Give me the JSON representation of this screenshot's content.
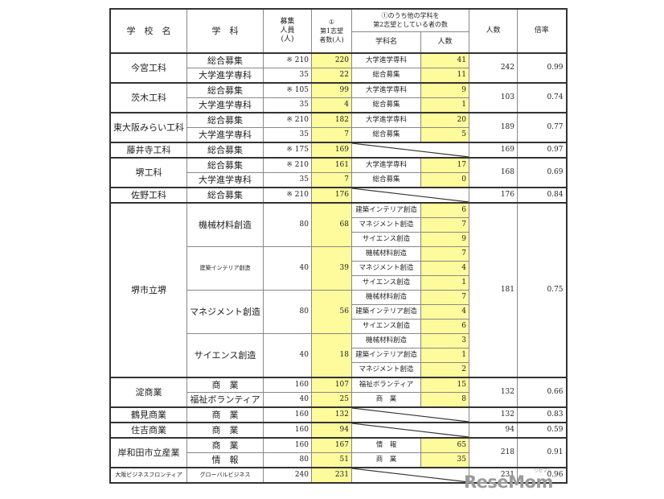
{
  "header": {
    "school": "学　校　名",
    "dept": "学　科",
    "capacity": "募集\n人員\n(人)",
    "first_choice": "①\n第1志望\n者数(人)",
    "second_group": "①のうち他の学科を\n第2志望としている者の数",
    "second_dept": "学科名",
    "second_count": "人数",
    "total": "人数",
    "ratio": "倍率"
  },
  "schools": [
    {
      "name": "今宮工科",
      "total": "242",
      "ratio": "0.99",
      "depts": [
        {
          "name": "総合募集",
          "capacity": "※ 210",
          "first": "220",
          "second": [
            {
              "dept": "大学進学専科",
              "count": "41"
            }
          ]
        },
        {
          "name": "大学進学専科",
          "capacity": "35",
          "first": "22",
          "second": [
            {
              "dept": "総合募集",
              "count": "11"
            }
          ]
        }
      ]
    },
    {
      "name": "茨木工科",
      "total": "103",
      "ratio": "0.74",
      "depts": [
        {
          "name": "総合募集",
          "capacity": "※ 105",
          "first": "99",
          "second": [
            {
              "dept": "大学進学専科",
              "count": "9"
            }
          ]
        },
        {
          "name": "大学進学専科",
          "capacity": "35",
          "first": "4",
          "second": [
            {
              "dept": "総合募集",
              "count": "1"
            }
          ]
        }
      ]
    },
    {
      "name": "東大阪みらい工科",
      "total": "189",
      "ratio": "0.77",
      "depts": [
        {
          "name": "総合募集",
          "capacity": "※ 210",
          "first": "182",
          "second": [
            {
              "dept": "大学進学専科",
              "count": "20"
            }
          ]
        },
        {
          "name": "大学進学専科",
          "capacity": "35",
          "first": "7",
          "second": [
            {
              "dept": "総合募集",
              "count": "5"
            }
          ]
        }
      ]
    },
    {
      "name": "藤井寺工科",
      "total": "169",
      "ratio": "0.97",
      "depts": [
        {
          "name": "総合募集",
          "capacity": "※ 175",
          "first": "169",
          "second": []
        }
      ]
    },
    {
      "name": "堺工科",
      "total": "168",
      "ratio": "0.69",
      "depts": [
        {
          "name": "総合募集",
          "capacity": "※ 210",
          "first": "161",
          "second": [
            {
              "dept": "大学進学専科",
              "count": "17"
            }
          ]
        },
        {
          "name": "大学進学専科",
          "capacity": "35",
          "first": "7",
          "second": [
            {
              "dept": "総合募集",
              "count": "0"
            }
          ]
        }
      ]
    },
    {
      "name": "佐野工科",
      "total": "176",
      "ratio": "0.84",
      "depts": [
        {
          "name": "総合募集",
          "capacity": "※ 210",
          "first": "176",
          "second": []
        }
      ]
    },
    {
      "name": "堺市立堺",
      "total": "181",
      "ratio": "0.75",
      "depts": [
        {
          "name": "機械材料創造",
          "capacity": "80",
          "first": "68",
          "second": [
            {
              "dept": "建築インテリア創造",
              "count": "6"
            },
            {
              "dept": "マネジメント創造",
              "count": "7"
            },
            {
              "dept": "サイエンス創造",
              "count": "9"
            }
          ]
        },
        {
          "name": "建築インテリア創造",
          "capacity": "40",
          "first": "39",
          "second": [
            {
              "dept": "機械材料創造",
              "count": "7"
            },
            {
              "dept": "マネジメント創造",
              "count": "4"
            },
            {
              "dept": "サイエンス創造",
              "count": "1"
            }
          ]
        },
        {
          "name": "マネジメント創造",
          "capacity": "80",
          "first": "56",
          "second": [
            {
              "dept": "機械材料創造",
              "count": "7"
            },
            {
              "dept": "建築インテリア創造",
              "count": "4"
            },
            {
              "dept": "サイエンス創造",
              "count": "6"
            }
          ]
        },
        {
          "name": "サイエンス創造",
          "capacity": "40",
          "first": "18",
          "second": [
            {
              "dept": "機械材料創造",
              "count": "3"
            },
            {
              "dept": "建築インテリア創造",
              "count": "1"
            },
            {
              "dept": "マネジメント創造",
              "count": "2"
            }
          ]
        }
      ]
    },
    {
      "name": "淀商業",
      "total": "132",
      "ratio": "0.66",
      "depts": [
        {
          "name": "商　業",
          "capacity": "160",
          "first": "107",
          "second": [
            {
              "dept": "福祉ボランティア",
              "count": "15"
            }
          ]
        },
        {
          "name": "福祉ボランティア",
          "capacity": "40",
          "first": "25",
          "second": [
            {
              "dept": "商　業",
              "count": "8"
            }
          ]
        }
      ]
    },
    {
      "name": "鶴見商業",
      "total": "132",
      "ratio": "0.83",
      "depts": [
        {
          "name": "商　業",
          "capacity": "160",
          "first": "132",
          "second": []
        }
      ]
    },
    {
      "name": "住吉商業",
      "total": "94",
      "ratio": "0.59",
      "depts": [
        {
          "name": "商　業",
          "capacity": "160",
          "first": "94",
          "second": []
        }
      ]
    },
    {
      "name": "岸和田市立産業",
      "total": "218",
      "ratio": "0.91",
      "depts": [
        {
          "name": "商　業",
          "capacity": "160",
          "first": "167",
          "second": [
            {
              "dept": "情　報",
              "count": "65"
            }
          ]
        },
        {
          "name": "情　報",
          "capacity": "80",
          "first": "51",
          "second": [
            {
              "dept": "商　業",
              "count": "35"
            }
          ]
        }
      ]
    },
    {
      "name": "大阪ビジネスフロンティア",
      "total": "231",
      "ratio": "0.96",
      "small": true,
      "depts": [
        {
          "name": "グローバルビジネス",
          "capacity": "240",
          "first": "231",
          "second": []
        }
      ]
    }
  ],
  "colors": {
    "highlight": "#fdfb9c",
    "border": "#333333"
  },
  "logo": {
    "text": "ReseMom",
    "sub": "リセマム"
  }
}
